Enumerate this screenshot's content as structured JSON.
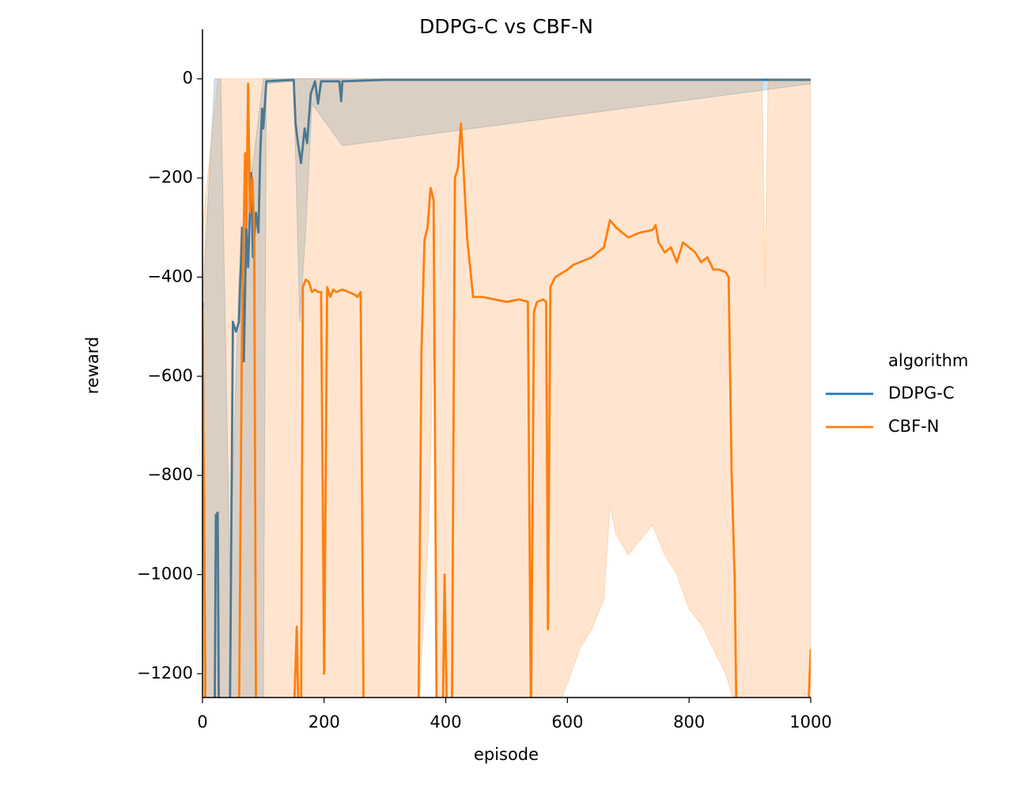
{
  "chart_data": {
    "type": "line",
    "title": "DDPG-C vs CBF-N",
    "xlabel": "episode",
    "ylabel": "reward",
    "xlim": [
      0,
      1000
    ],
    "ylim": [
      -1248,
      100
    ],
    "xticks": [
      0,
      200,
      400,
      600,
      800,
      1000
    ],
    "yticks": [
      0,
      {
        "value": -200,
        "label": "−200"
      },
      {
        "value": -400,
        "label": "−400"
      },
      {
        "value": -600,
        "label": "−600"
      },
      {
        "value": -800,
        "label": "−800"
      },
      {
        "value": -1000,
        "label": "−1000"
      },
      {
        "value": -1200,
        "label": "−1200"
      }
    ],
    "grid": false,
    "legend_title": "algorithm",
    "legend": "center right outside",
    "series": [
      {
        "name": "DDPG-C",
        "color": "#1f77b4",
        "x": [
          0,
          5,
          20,
          22,
          25,
          27,
          45,
          50,
          55,
          60,
          65,
          68,
          72,
          75,
          80,
          83,
          88,
          92,
          95,
          98,
          100,
          105,
          150,
          153,
          157,
          162,
          168,
          172,
          178,
          185,
          190,
          195,
          225,
          228,
          230,
          300,
          500,
          1000
        ],
        "values": [
          -450,
          -1300,
          -1300,
          -880,
          -875,
          -1300,
          -1300,
          -490,
          -510,
          -490,
          -300,
          -570,
          -300,
          -380,
          -190,
          -360,
          -270,
          -310,
          -150,
          -60,
          -100,
          -5,
          -2,
          -90,
          -130,
          -170,
          -100,
          -130,
          -30,
          -5,
          -50,
          -5,
          -5,
          -45,
          -5,
          -2,
          -2,
          -2
        ],
        "band": {
          "x": [
            0,
            20,
            30,
            45,
            60,
            100,
            105,
            150,
            160,
            170,
            180,
            230,
            1000
          ],
          "lower": [
            -1300,
            -1300,
            -1300,
            -1300,
            -1300,
            -1300,
            -10,
            -5,
            -490,
            -300,
            -50,
            -135,
            -10
          ],
          "upper": [
            -450,
            0,
            0,
            -1000,
            -400,
            0,
            0,
            0,
            0,
            0,
            0,
            0,
            0
          ]
        }
      },
      {
        "name": "CBF-N",
        "color": "#ff7f0e",
        "x": [
          0,
          5,
          60,
          65,
          70,
          72,
          75,
          78,
          82,
          85,
          88,
          150,
          155,
          158,
          162,
          165,
          170,
          175,
          180,
          185,
          190,
          195,
          200,
          205,
          210,
          215,
          220,
          230,
          240,
          250,
          255,
          260,
          265,
          355,
          360,
          365,
          370,
          375,
          380,
          385,
          395,
          398,
          402,
          410,
          415,
          420,
          425,
          430,
          435,
          445,
          460,
          480,
          500,
          520,
          535,
          540,
          545,
          550,
          560,
          565,
          568,
          572,
          580,
          600,
          610,
          620,
          640,
          650,
          660,
          670,
          680,
          700,
          720,
          740,
          745,
          750,
          760,
          770,
          780,
          790,
          800,
          810,
          820,
          830,
          840,
          850,
          860,
          865,
          870,
          875,
          878,
          995,
          1000
        ],
        "values": [
          -460,
          -1300,
          -1300,
          -500,
          -150,
          -300,
          -10,
          -270,
          -200,
          -300,
          -1300,
          -1300,
          -1105,
          -1300,
          -1300,
          -420,
          -405,
          -410,
          -430,
          -425,
          -430,
          -430,
          -1200,
          -420,
          -440,
          -425,
          -430,
          -425,
          -430,
          -435,
          -440,
          -430,
          -1300,
          -1300,
          -550,
          -325,
          -300,
          -220,
          -245,
          -1300,
          -1300,
          -1000,
          -1300,
          -1300,
          -200,
          -180,
          -90,
          -200,
          -320,
          -440,
          -440,
          -445,
          -450,
          -445,
          -450,
          -1300,
          -470,
          -450,
          -445,
          -450,
          -1110,
          -420,
          -400,
          -385,
          -375,
          -370,
          -360,
          -350,
          -340,
          -285,
          -300,
          -320,
          -310,
          -305,
          -295,
          -330,
          -350,
          -340,
          -370,
          -330,
          -340,
          -350,
          -370,
          -360,
          -385,
          -385,
          -390,
          -400,
          -800,
          -1010,
          -1300,
          -1300,
          -1150
        ],
        "band": {
          "x": [
            0,
            25,
            355,
            372,
            380,
            385,
            410,
            420,
            430,
            560,
            590,
            600,
            620,
            640,
            660,
            670,
            680,
            700,
            720,
            740,
            760,
            780,
            800,
            820,
            840,
            860,
            870,
            880,
            920,
            925,
            930,
            1000
          ],
          "lower": [
            -1300,
            -1300,
            -1300,
            -900,
            -510,
            -1300,
            -1300,
            -1250,
            -1300,
            -1300,
            -1250,
            -1220,
            -1150,
            -1110,
            -1050,
            -860,
            -920,
            -960,
            -930,
            -900,
            -960,
            -1000,
            -1070,
            -1100,
            -1150,
            -1200,
            -1240,
            -1300,
            -1300,
            -1300,
            -1300,
            -1300
          ],
          "upper": [
            -300,
            0,
            0,
            0,
            0,
            0,
            0,
            0,
            0,
            0,
            0,
            0,
            0,
            0,
            0,
            0,
            0,
            0,
            0,
            0,
            0,
            0,
            0,
            0,
            0,
            0,
            0,
            0,
            0,
            -420,
            0,
            0
          ]
        }
      }
    ]
  }
}
